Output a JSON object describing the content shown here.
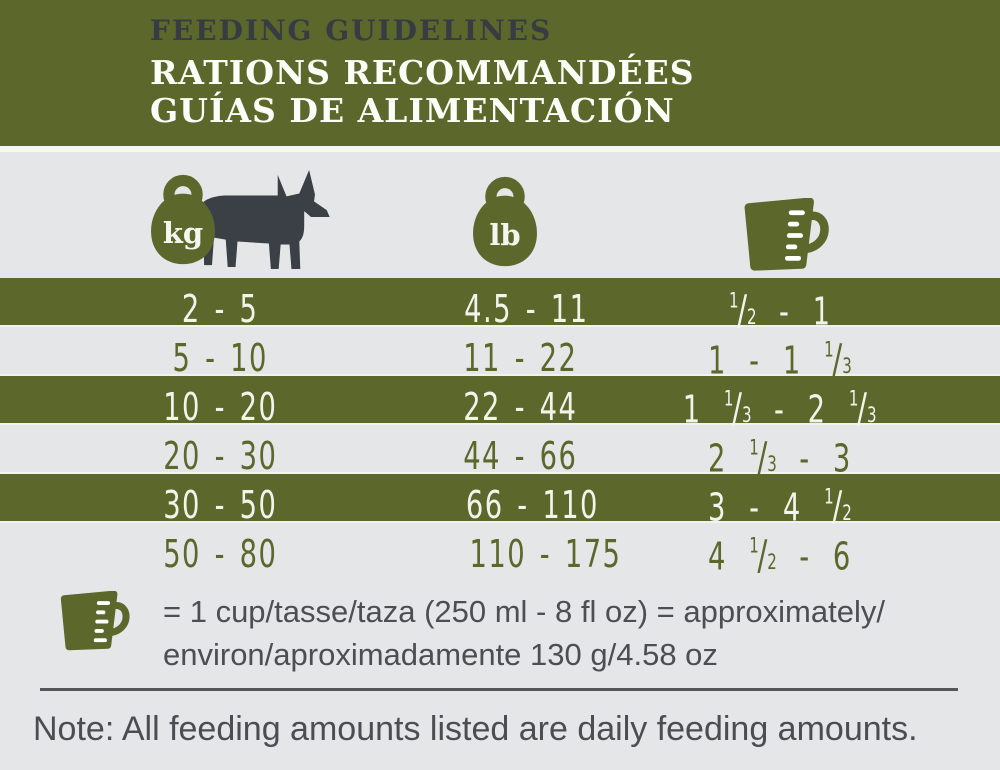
{
  "header": {
    "line1": "FEEDING GUIDELINES",
    "line2": "RATIONS RECOMMANDÉES",
    "line3": "GUÍAS DE ALIMENTACIÓN"
  },
  "columns": {
    "weight_kg_label": "kg",
    "weight_lb_label": "lb",
    "cups_icon": "measuring-cup-icon"
  },
  "table": {
    "rows": [
      {
        "kg": "2 - 5",
        "lb": "4.5 - 11",
        "cups": "1/2 - 1"
      },
      {
        "kg": "5 - 10",
        "lb": "11 - 22",
        "cups": "1 - 1 1/3"
      },
      {
        "kg": "10 - 20",
        "lb": "22 - 44",
        "cups": "1 1/3 - 2 1/3"
      },
      {
        "kg": "20 - 30",
        "lb": "44 - 66",
        "cups": "2 1/3 - 3"
      },
      {
        "kg": "30 - 50",
        "lb": "66 - 110",
        "cups": "3 - 4 1/2"
      },
      {
        "kg": "50 - 80",
        "lb": "110 - 175",
        "cups": "4 1/2 - 6"
      }
    ]
  },
  "legend": {
    "line1": "= 1 cup/tasse/taza (250 ml - 8 fl oz) = approximately/",
    "line2": "environ/aproximadamente 130 g/4.58 oz"
  },
  "note": "Note: All feeding amounts listed are daily feeding amounts.",
  "icons": {
    "dog": "dog-silhouette-icon",
    "kg": "kettlebell-kg-icon",
    "lb": "kettlebell-lb-icon",
    "cup": "measuring-cup-icon"
  },
  "colors": {
    "olive": "#5b672b",
    "header_title_dark": "#363c42",
    "header_title_light": "#fdfdf8",
    "background_gray": "#e5e6e7",
    "row_text_on_olive": "#f3f3ec",
    "body_text": "#4b4e53",
    "dog_silhouette": "#3b4046"
  }
}
